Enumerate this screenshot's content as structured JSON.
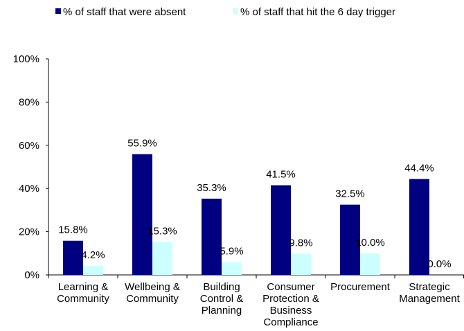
{
  "chart_data": {
    "type": "bar",
    "title": "",
    "xlabel": "",
    "ylabel": "",
    "categories": [
      [
        "Learning &",
        "Community"
      ],
      [
        "Wellbeing &",
        "Community"
      ],
      [
        "Building",
        "Control &",
        "Planning"
      ],
      [
        "Consumer",
        "Protection &",
        "Business",
        "Compliance"
      ],
      [
        "Procurement"
      ],
      [
        "Strategic",
        "Management"
      ]
    ],
    "series": [
      {
        "name": "% of staff that were absent",
        "color": "#000080",
        "values": [
          15.8,
          55.9,
          35.3,
          41.5,
          32.5,
          44.4
        ],
        "labels": [
          "15.8%",
          "55.9%",
          "35.3%",
          "41.5%",
          "32.5%",
          "44.4%"
        ]
      },
      {
        "name": "% of staff that hit the 6 day trigger",
        "color": "#CCFFFF",
        "values": [
          4.2,
          15.3,
          5.9,
          9.8,
          10.0,
          0.0
        ],
        "labels": [
          "4.2%",
          "15.3%",
          "5.9%",
          "9.8%",
          "10.0%",
          "0.0%"
        ]
      }
    ],
    "ylim": [
      0,
      100
    ],
    "yticks": [
      0,
      20,
      40,
      60,
      80,
      100
    ],
    "ytick_labels": [
      "0%",
      "20%",
      "40%",
      "60%",
      "80%",
      "100%"
    ],
    "grid": false,
    "legend_position": "top"
  }
}
